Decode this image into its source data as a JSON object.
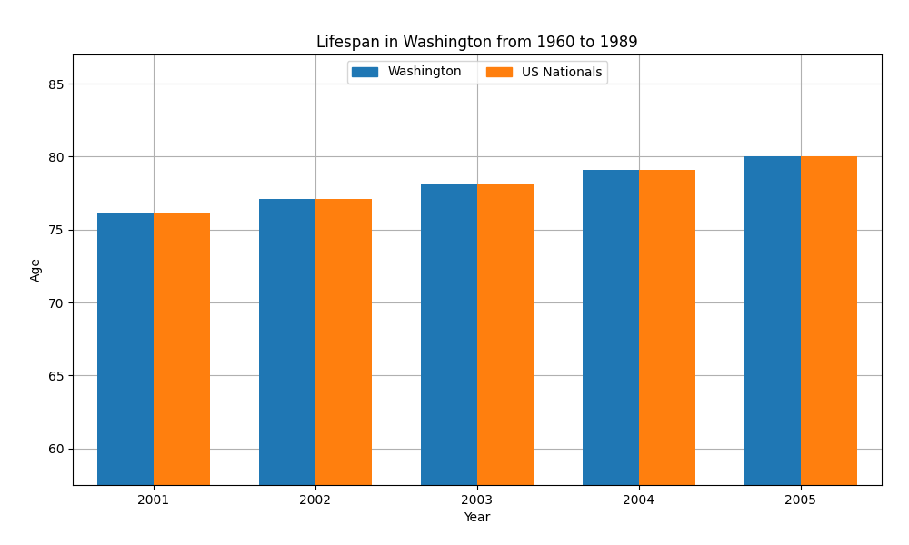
{
  "chart_data": {
    "type": "bar",
    "title": "Lifespan in Washington from 1960 to 1989",
    "x_label": "Year",
    "y_label": "Age",
    "categories": [
      "2001",
      "2002",
      "2003",
      "2004",
      "2005"
    ],
    "series": [
      {
        "name": "Washington",
        "values": [
          76.1,
          77.1,
          78.1,
          79.1,
          80.0
        ]
      },
      {
        "name": "US Nationals",
        "values": [
          76.1,
          77.1,
          78.1,
          79.1,
          80.0
        ]
      }
    ],
    "ylim": [
      57.5,
      87
    ],
    "yticks": [
      60,
      65,
      70,
      75,
      80,
      85
    ],
    "grid": true,
    "legend": "upper center"
  }
}
